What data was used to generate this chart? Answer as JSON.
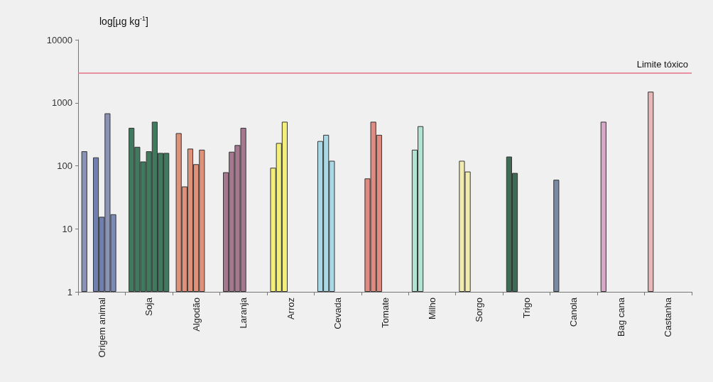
{
  "chart_data": {
    "type": "bar",
    "ylabel": "log[µg kg$^{-1}$]",
    "categories": [
      "Origem animal",
      "Soja",
      "Algodão",
      "Laranja",
      "Arroz",
      "Cevada",
      "Tomate",
      "Milho",
      "Sorgo",
      "Trigo",
      "Canola",
      "Bag cana",
      "Castanha"
    ],
    "series": [
      {
        "values": [
          170,
          400,
          330,
          79,
          93,
          247,
          63,
          180,
          120,
          140,
          60,
          500,
          1500
        ],
        "colors": [
          "#8a93b5",
          "#3f7a5e",
          "#e0917a",
          "#a67890",
          "#f2f07a",
          "#a9d8e6",
          "#e08a80",
          "#b2e2d2",
          "#f0ecb0",
          "#3f6a55",
          "#7a8aa2",
          "#d8a8c8",
          "#e8b8b8"
        ]
      },
      {
        "values": [
          null,
          200,
          47,
          167,
          230,
          310,
          500,
          425,
          81,
          77,
          null,
          null,
          null
        ],
        "colors": [
          "#8a93b5",
          "#3f7a5e",
          "#e0917a",
          "#a67890",
          "#f2f07a",
          "#a9d8e6",
          "#e08a80",
          "#b2e2d2",
          "#f0ecb0",
          "#3f6a55",
          "#7a8aa2",
          "#d8a8c8",
          "#e8b8b8"
        ]
      },
      {
        "values": [
          136,
          117,
          187,
          213,
          500,
          120,
          310,
          null,
          null,
          null,
          null,
          null,
          null
        ],
        "colors": [
          "#6f7fb0",
          "#3f7a5e",
          "#e0917a",
          "#a67890",
          "#f2f07a",
          "#a9d8e6",
          "#e08a80",
          "#b2e2d2",
          "#f0ecb0",
          "#3f6a55",
          "#7a8aa2",
          "#d8a8c8",
          "#e8b8b8"
        ]
      },
      {
        "values": [
          15.5,
          170,
          106,
          400,
          null,
          null,
          null,
          null,
          null,
          null,
          null,
          null,
          null
        ],
        "colors": [
          "#6f7fb0",
          "#3f7a5e",
          "#e0917a",
          "#a67890",
          "#f2f07a",
          "#a9d8e6",
          "#e08a80",
          "#b2e2d2",
          "#f0ecb0",
          "#3f6a55",
          "#7a8aa2",
          "#d8a8c8",
          "#e8b8b8"
        ]
      },
      {
        "values": [
          680,
          500,
          180,
          null,
          null,
          null,
          null,
          null,
          null,
          null,
          null,
          null,
          null
        ],
        "colors": [
          "#8a93b5",
          "#3f7a5e",
          "#e0917a",
          "#a67890",
          "#f2f07a",
          "#a9d8e6",
          "#e08a80",
          "#b2e2d2",
          "#f0ecb0",
          "#3f6a55",
          "#7a8aa2",
          "#d8a8c8",
          "#e8b8b8"
        ]
      },
      {
        "values": [
          17,
          160,
          null,
          null,
          null,
          null,
          null,
          null,
          null,
          null,
          null,
          null,
          null
        ],
        "colors": [
          "#7d8ab8",
          "#3f7a5e",
          "#e0917a",
          "#a67890",
          "#f2f07a",
          "#a9d8e6",
          "#e08a80",
          "#b2e2d2",
          "#f0ecb0",
          "#3f6a55",
          "#7a8aa2",
          "#d8a8c8",
          "#e8b8b8"
        ]
      },
      {
        "values": [
          null,
          160,
          null,
          null,
          null,
          null,
          null,
          null,
          null,
          null,
          null,
          null,
          null
        ],
        "colors": [
          "#8a93b5",
          "#3f7a5e",
          "#e0917a",
          "#a67890",
          "#f2f07a",
          "#a9d8e6",
          "#e08a80",
          "#b2e2d2",
          "#f0ecb0",
          "#3f6a55",
          "#7a8aa2",
          "#d8a8c8",
          "#e8b8b8"
        ]
      }
    ],
    "ylim": [
      1,
      10000
    ],
    "yticks": [
      1,
      10,
      100,
      1000,
      10000
    ],
    "log": true,
    "grid": false,
    "ref_lines": [
      {
        "axis": "y",
        "value": 3000,
        "label": "Limite tóxico",
        "color": "#e8708a"
      }
    ]
  }
}
